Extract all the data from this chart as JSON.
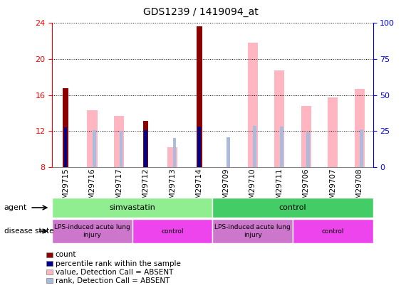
{
  "title": "GDS1239 / 1419094_at",
  "samples": [
    "GSM29715",
    "GSM29716",
    "GSM29717",
    "GSM29712",
    "GSM29713",
    "GSM29714",
    "GSM29709",
    "GSM29710",
    "GSM29711",
    "GSM29706",
    "GSM29707",
    "GSM29708"
  ],
  "count_values": [
    16.8,
    null,
    null,
    13.1,
    null,
    23.6,
    null,
    null,
    null,
    null,
    null,
    null
  ],
  "rank_values": [
    12.4,
    null,
    null,
    12.1,
    null,
    12.5,
    null,
    null,
    null,
    null,
    null,
    null
  ],
  "value_absent": [
    null,
    14.3,
    13.7,
    null,
    10.2,
    null,
    null,
    21.8,
    18.7,
    14.8,
    15.7,
    16.7
  ],
  "rank_absent": [
    null,
    12.1,
    12.05,
    null,
    11.2,
    null,
    11.3,
    12.6,
    12.5,
    11.9,
    null,
    12.2
  ],
  "ylim": [
    8,
    24
  ],
  "yticks_left": [
    8,
    12,
    16,
    20,
    24
  ],
  "yticks_right": [
    0,
    25,
    50,
    75,
    100
  ],
  "agent_groups": [
    {
      "label": "simvastatin",
      "start": 0,
      "end": 6,
      "color": "#90EE90"
    },
    {
      "label": "control",
      "start": 6,
      "end": 12,
      "color": "#44CC66"
    }
  ],
  "disease_groups": [
    {
      "label": "LPS-induced acute lung\ninjury",
      "start": 0,
      "end": 3,
      "color": "#CC77CC"
    },
    {
      "label": "control",
      "start": 3,
      "end": 6,
      "color": "#EE44EE"
    },
    {
      "label": "LPS-induced acute lung\ninjury",
      "start": 6,
      "end": 9,
      "color": "#CC77CC"
    },
    {
      "label": "control",
      "start": 9,
      "end": 12,
      "color": "#EE44EE"
    }
  ],
  "bar_width": 0.38,
  "rank_bar_width": 0.13,
  "color_count": "#8B0000",
  "color_rank": "#00008B",
  "color_value_absent": "#FFB6C1",
  "color_rank_absent": "#AABBDD",
  "legend_items": [
    {
      "color": "#8B0000",
      "label": "count"
    },
    {
      "color": "#00008B",
      "label": "percentile rank within the sample"
    },
    {
      "color": "#FFB6C1",
      "label": "value, Detection Call = ABSENT"
    },
    {
      "color": "#AABBDD",
      "label": "rank, Detection Call = ABSENT"
    }
  ]
}
